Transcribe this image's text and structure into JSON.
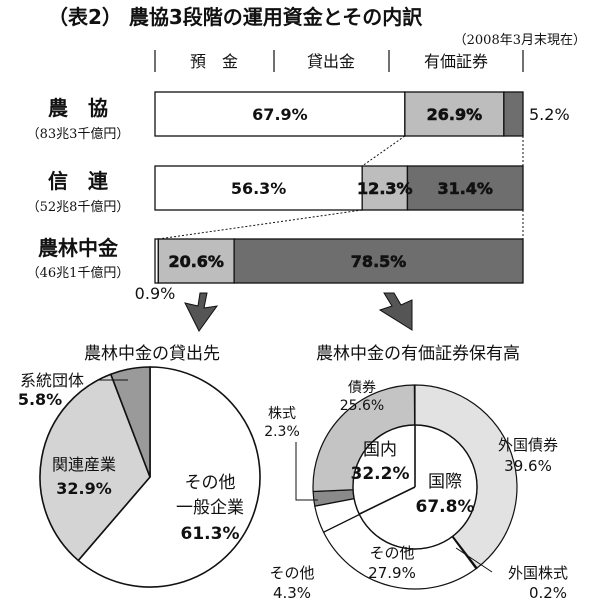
{
  "title": "（表2） 農協3段階の運用資金とその内訳",
  "date_note": "（2008年3月末現在）",
  "column_headers": [
    "預　金",
    "貸出金",
    "有価証券"
  ],
  "colors": {
    "deposit": "#ffffff",
    "loan": "#bdbdbd",
    "securities": "#6e6e6e",
    "stroke": "#111111"
  },
  "chart_data": [
    {
      "type": "bar",
      "title": "（表2） 農協3段階の運用資金とその内訳",
      "subtitle": "（2008年3月末現在）",
      "orientation": "horizontal-stacked-100",
      "categories": [
        "預　金",
        "貸出金",
        "有価証券"
      ],
      "rows": [
        {
          "name": "農　協",
          "sub": "（83兆3千億円）",
          "values": [
            67.9,
            26.9,
            5.2
          ],
          "labels": [
            "67.9%",
            "26.9%",
            "5.2%"
          ]
        },
        {
          "name": "信　連",
          "sub": "（52兆8千億円）",
          "values": [
            56.3,
            12.3,
            31.4
          ],
          "labels": [
            "56.3%",
            "12.3%",
            "31.4%"
          ]
        },
        {
          "name": "農林中金",
          "sub": "（46兆1千億円）",
          "values": [
            0.9,
            20.6,
            78.5
          ],
          "labels": [
            "0.9%",
            "20.6%",
            "78.5%"
          ]
        }
      ]
    },
    {
      "type": "pie",
      "title": "農林中金の貸出先",
      "slices": [
        {
          "label": "その他\n一般企業",
          "value": 61.3,
          "text": "61.3%"
        },
        {
          "label": "関連産業",
          "value": 32.9,
          "text": "32.9%"
        },
        {
          "label": "系統団体",
          "value": 5.8,
          "text": "5.8%"
        }
      ]
    },
    {
      "type": "pie",
      "title": "農林中金の有価証券保有高",
      "inner": [
        {
          "label": "国内",
          "value": 32.2,
          "text": "32.2%"
        },
        {
          "label": "国際",
          "value": 67.8,
          "text": "67.8%"
        }
      ],
      "outer": [
        {
          "label": "外国債券",
          "value": 39.6,
          "text": "39.6%"
        },
        {
          "label": "外国株式",
          "value": 0.2,
          "text": "0.2%"
        },
        {
          "label": "その他",
          "value": 27.9,
          "text": "27.9%"
        },
        {
          "label": "その他",
          "value": 4.3,
          "text": "4.3%"
        },
        {
          "label": "株式",
          "value": 2.3,
          "text": "2.3%"
        },
        {
          "label": "債券",
          "value": 25.6,
          "text": "25.6%"
        }
      ]
    }
  ]
}
